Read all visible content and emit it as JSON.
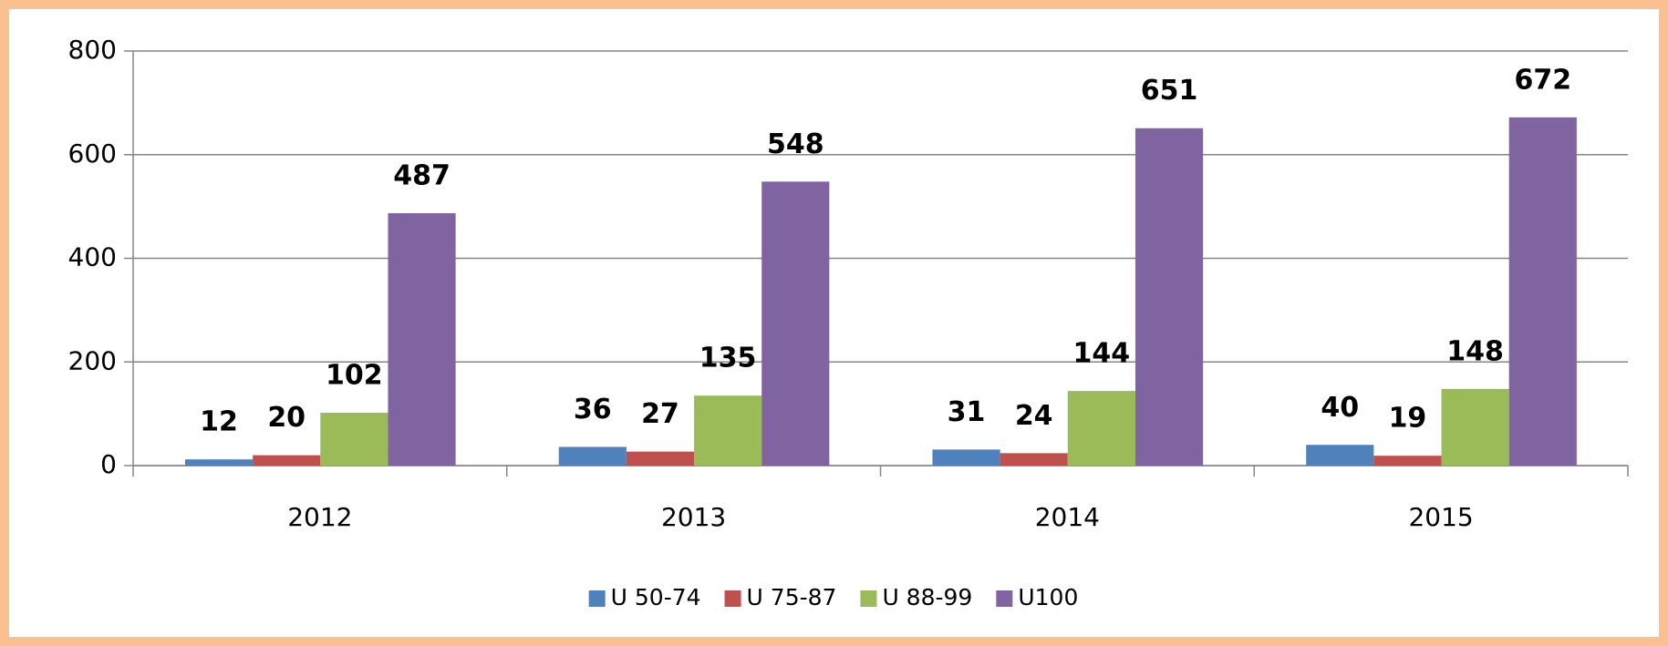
{
  "chart_data": {
    "type": "bar",
    "categories": [
      "2012",
      "2013",
      "2014",
      "2015"
    ],
    "series": [
      {
        "name": "U 50-74",
        "color": "#4f81bd",
        "values": [
          12,
          36,
          31,
          40
        ]
      },
      {
        "name": "U 75-87",
        "color": "#c0504d",
        "values": [
          20,
          27,
          24,
          19
        ]
      },
      {
        "name": "U 88-99",
        "color": "#9bbb59",
        "values": [
          102,
          135,
          144,
          148
        ]
      },
      {
        "name": "U100",
        "color": "#8064a2",
        "values": [
          487,
          548,
          651,
          672
        ]
      }
    ],
    "ylim": [
      0,
      800
    ],
    "yticks": [
      0,
      200,
      400,
      600,
      800
    ],
    "grid": true,
    "legend": "bottom"
  }
}
